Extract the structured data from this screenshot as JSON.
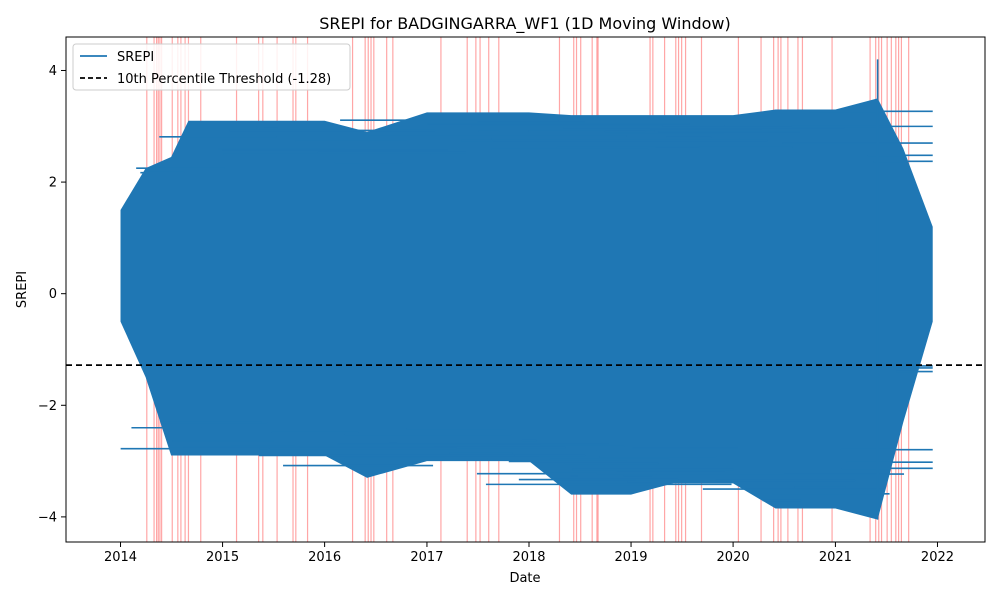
{
  "chart_data": {
    "type": "line",
    "title": "SREPI for BADGINGARRA_WF1 (1D Moving Window)",
    "xlabel": "Date",
    "ylabel": "SREPI",
    "x_ticks": [
      "2014",
      "2015",
      "2016",
      "2017",
      "2018",
      "2019",
      "2020",
      "2021",
      "2022"
    ],
    "y_ticks": [
      -4,
      -2,
      0,
      2,
      4
    ],
    "xlim": [
      "2013-06-20",
      "2022-06-20"
    ],
    "ylim": [
      -4.45,
      4.6
    ],
    "grid": false,
    "legend_position": "upper-left",
    "series": [
      {
        "name": "SREPI",
        "color": "#1f77b4",
        "x": [
          "2014-01-01",
          "2014-04-01",
          "2014-07-01",
          "2014-09-01",
          "2015-01-01",
          "2015-06-01",
          "2016-01-01",
          "2016-06-01",
          "2017-01-01",
          "2017-06-01",
          "2018-01-01",
          "2018-06-01",
          "2019-01-01",
          "2019-06-01",
          "2020-01-01",
          "2020-06-01",
          "2021-01-01",
          "2021-06-01",
          "2021-09-01",
          "2021-12-15"
        ],
        "upper_envelope": [
          1.5,
          2.25,
          2.45,
          3.1,
          3.1,
          3.1,
          3.1,
          2.9,
          3.25,
          3.25,
          3.25,
          3.2,
          3.2,
          3.2,
          3.2,
          3.3,
          3.3,
          3.5,
          2.6,
          1.2
        ],
        "lower_envelope": [
          -0.5,
          -1.5,
          -2.9,
          -2.9,
          -2.9,
          -2.9,
          -2.9,
          -3.3,
          -3.0,
          -3.0,
          -3.0,
          -3.6,
          -3.6,
          -3.4,
          -3.4,
          -3.85,
          -3.85,
          -4.05,
          -2.3,
          -0.5
        ]
      },
      {
        "name": "10th Percentile Threshold (-1.28)",
        "color": "#000000",
        "style": "dashed",
        "value": -1.28
      }
    ],
    "highlight_color": "#ff0000",
    "highlight_dates": [
      "2014-04-05",
      "2014-05-01",
      "2014-05-10",
      "2014-05-16",
      "2014-05-22",
      "2014-05-28",
      "2014-07-05",
      "2014-07-25",
      "2014-08-05",
      "2014-08-20",
      "2014-09-01",
      "2014-10-15",
      "2015-02-20",
      "2015-05-10",
      "2015-05-25",
      "2015-07-15",
      "2015-09-10",
      "2015-09-20",
      "2015-11-01",
      "2016-04-10",
      "2016-05-25",
      "2016-06-05",
      "2016-06-15",
      "2016-06-25",
      "2016-08-10",
      "2016-09-01",
      "2017-02-20",
      "2017-05-25",
      "2017-06-25",
      "2017-07-10",
      "2017-08-10",
      "2017-09-15",
      "2018-04-20",
      "2018-06-10",
      "2018-06-20",
      "2018-07-05",
      "2018-08-15",
      "2018-09-01",
      "2018-09-05",
      "2019-03-10",
      "2019-03-20",
      "2019-05-01",
      "2019-06-10",
      "2019-06-20",
      "2019-07-01",
      "2019-07-15",
      "2019-09-10",
      "2020-01-20",
      "2020-04-10",
      "2020-05-25",
      "2020-06-10",
      "2020-06-20",
      "2020-07-15",
      "2020-08-20",
      "2020-09-05",
      "2020-12-20",
      "2021-05-05",
      "2021-05-25",
      "2021-06-05",
      "2021-06-15",
      "2021-07-05",
      "2021-07-20",
      "2021-08-05",
      "2021-08-15",
      "2021-08-25",
      "2021-09-20"
    ]
  }
}
